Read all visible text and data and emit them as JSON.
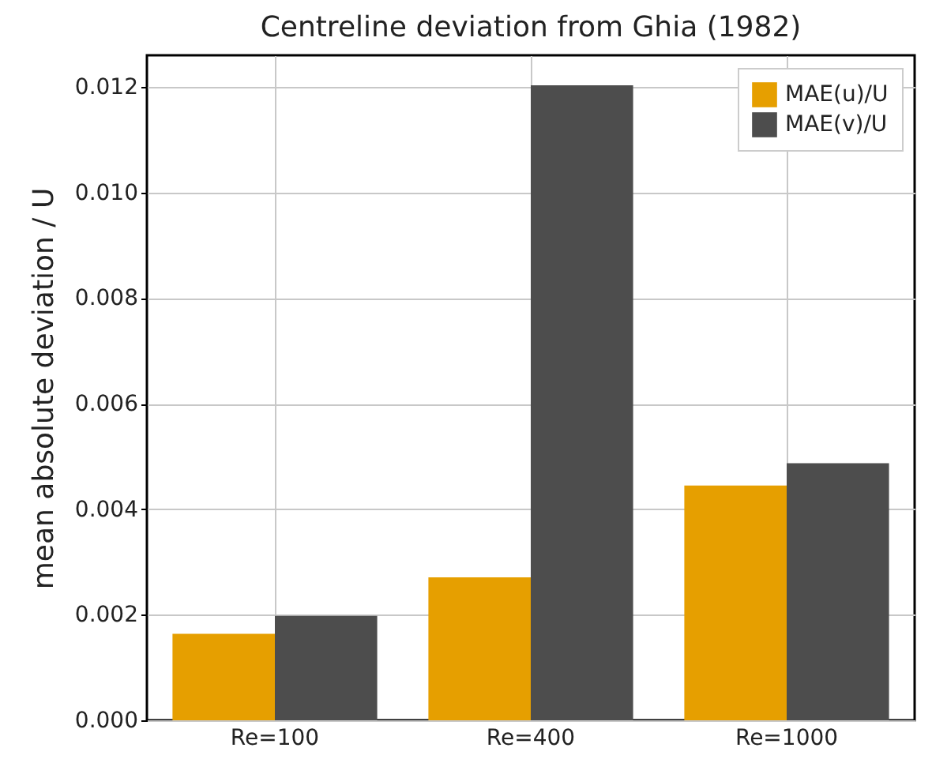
{
  "chart_data": {
    "type": "bar",
    "title": "Centreline deviation from Ghia (1982)",
    "ylabel": "mean absolute deviation / U",
    "categories": [
      "Re=100",
      "Re=400",
      "Re=1000"
    ],
    "series": [
      {
        "name": "MAE(u)/U",
        "color": "#e69f00",
        "values": [
          0.00164,
          0.00271,
          0.00445
        ]
      },
      {
        "name": "MAE(v)/U",
        "color": "#4d4d4d",
        "values": [
          0.00198,
          0.01203,
          0.00487
        ]
      }
    ],
    "ylim": [
      0,
      0.0126
    ],
    "yticks": [
      {
        "value": 0,
        "label": "0.000"
      },
      {
        "value": 0.002,
        "label": "0.002"
      },
      {
        "value": 0.004,
        "label": "0.004"
      },
      {
        "value": 0.006,
        "label": "0.006"
      },
      {
        "value": 0.008,
        "label": "0.008"
      },
      {
        "value": 0.01,
        "label": "0.010"
      },
      {
        "value": 0.012,
        "label": "0.012"
      }
    ],
    "grid": true,
    "legend": "top right"
  }
}
